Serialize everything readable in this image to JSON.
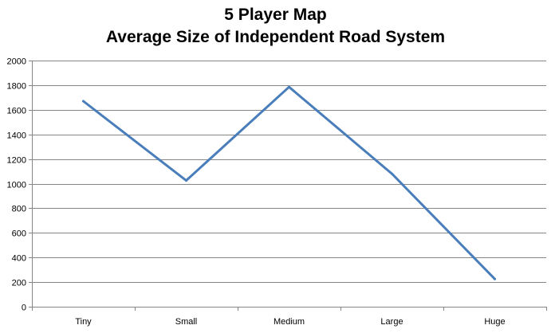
{
  "chart_data": {
    "type": "line",
    "title": "5 Player Map",
    "subtitle": "Average Size of Independent Road System",
    "xlabel": "",
    "ylabel": "",
    "categories": [
      "Tiny",
      "Small",
      "Medium",
      "Large",
      "Huge"
    ],
    "series": [
      {
        "values": [
          1670,
          1025,
          1785,
          1080,
          225
        ]
      }
    ],
    "ylim": [
      0,
      2000
    ],
    "yticks": [
      "0",
      "200",
      "400",
      "600",
      "800",
      "1000",
      "1200",
      "1400",
      "1600",
      "1800",
      "2000"
    ],
    "grid": true,
    "legend": "none",
    "colors": {
      "line": "#4a7ebb",
      "grid": "#868686",
      "axis": "#868686"
    }
  }
}
